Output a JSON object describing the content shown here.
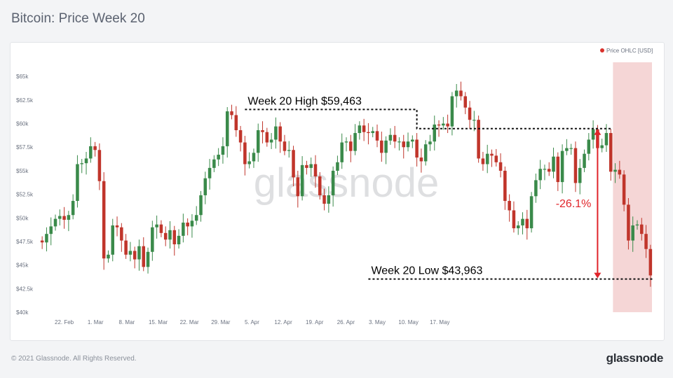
{
  "page_title": "Bitcoin: Price Week 20",
  "footer": {
    "copyright": "© 2021 Glassnode. All Rights Reserved.",
    "logo": "glassnode"
  },
  "watermark": "glassnode",
  "chart_data": {
    "type": "candlestick",
    "title": "Bitcoin: Price Week 20",
    "legend": {
      "label": "Price OHLC [USD]",
      "position": "top-right",
      "color": "#d9312b"
    },
    "y_ticks": [
      "$40k",
      "$42.5k",
      "$45k",
      "$47.5k",
      "$50k",
      "$52.5k",
      "$55k",
      "$57.5k",
      "$60k",
      "$62.5k",
      "$65k"
    ],
    "ylim": [
      40000,
      66500
    ],
    "x_ticks": [
      "22. Feb",
      "1. Mar",
      "8. Mar",
      "15. Mar",
      "22. Mar",
      "29. Mar",
      "5. Apr",
      "12. Apr",
      "19. Apr",
      "26. Apr",
      "3. May",
      "10. May",
      "17. May"
    ],
    "colors": {
      "up": "#3a8a4a",
      "down": "#c0352b",
      "highlight": "#f2cccc",
      "arrow": "#e0242a"
    },
    "highlight_range": [
      "9. May",
      "18. May"
    ],
    "annotations": {
      "high_label": "Week 20 High $59,463",
      "high_value": 59463,
      "low_label": "Week 20 Low $43,963",
      "low_value": 43963,
      "drawdown_label": "-26.1%"
    },
    "closes": [
      47400,
      48300,
      49100,
      49900,
      50200,
      49800,
      50300,
      51800,
      55700,
      55800,
      56300,
      57600,
      57200,
      53900,
      45700,
      46100,
      49200,
      49000,
      47600,
      46100,
      46500,
      45600,
      47000,
      44800,
      46400,
      49000,
      49300,
      48400,
      47700,
      48700,
      47200,
      48100,
      49500,
      49100,
      49700,
      50300,
      52400,
      54200,
      55300,
      56200,
      56700,
      57600,
      61300,
      60900,
      59300,
      58000,
      55700,
      56000,
      56900,
      59300,
      59100,
      58000,
      58300,
      59700,
      58100,
      57100,
      57200,
      54300,
      52300,
      55600,
      55300,
      55700,
      54400,
      52400,
      51500,
      52400,
      55000,
      55900,
      58000,
      58100,
      57100,
      59000,
      59800,
      59100,
      59000,
      59200,
      58200,
      56900,
      58200,
      58800,
      58100,
      58100,
      57500,
      58100,
      58300,
      56400,
      56000,
      57800,
      58100,
      59900,
      59800,
      60000,
      59700,
      62900,
      63500,
      62900,
      61700,
      60400,
      60400,
      56300,
      55700,
      56800,
      56600,
      55900,
      55000,
      51800,
      50800,
      48900,
      49200,
      49900,
      48900,
      52300,
      54000,
      55200,
      55200,
      54900,
      56500,
      53800,
      57100,
      57400,
      57400,
      53700,
      55300,
      56800,
      58300,
      59400,
      57400,
      57700,
      59000,
      54900,
      55100,
      54600,
      51400,
      47600,
      49200,
      49300,
      48300,
      46700,
      43900
    ]
  }
}
